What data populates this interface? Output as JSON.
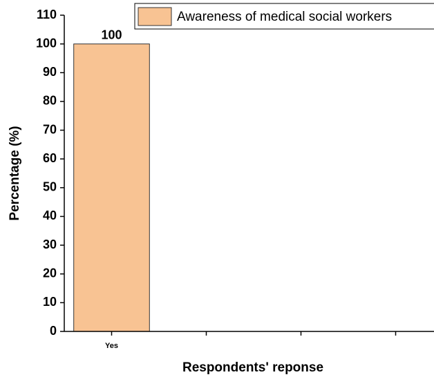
{
  "chart_data": {
    "type": "bar",
    "x_label": "Respondents' reponse",
    "y_label": "Percentage (%)",
    "categories": [
      "Yes",
      null,
      null,
      null
    ],
    "series": [
      {
        "name": "Awareness of medical social workers",
        "color": "#f8c393",
        "values": [
          100,
          null,
          null,
          null
        ]
      }
    ],
    "ylim": [
      0,
      110
    ],
    "yticks": [
      0,
      10,
      20,
      30,
      40,
      50,
      60,
      70,
      80,
      90,
      100,
      110
    ],
    "legend": "top-right",
    "value_labels_shown": true
  }
}
